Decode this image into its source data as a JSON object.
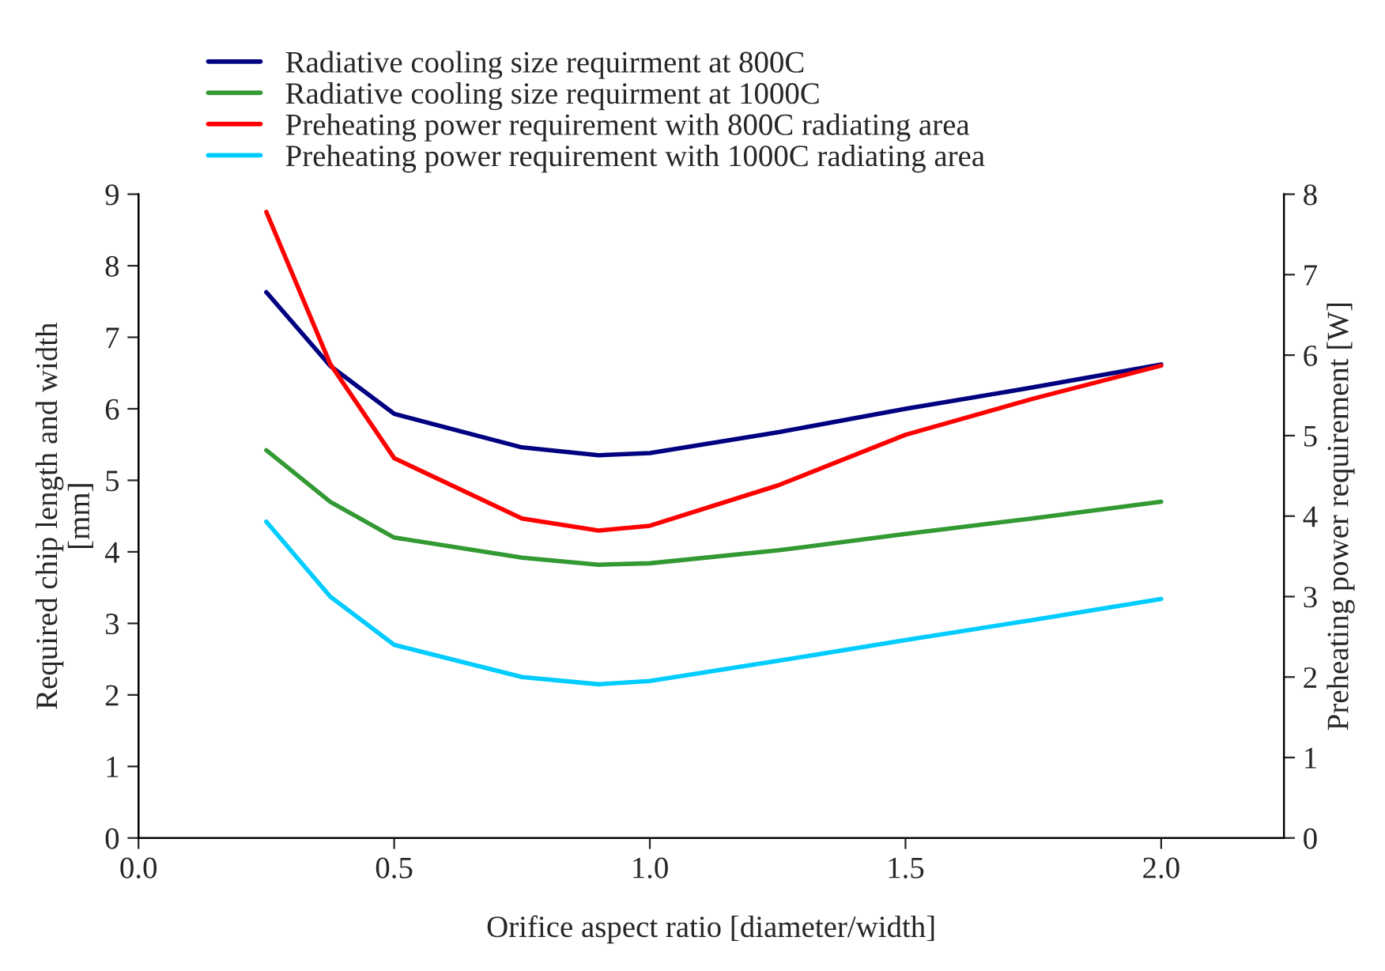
{
  "chart_data": {
    "type": "line",
    "xlabel": "Orifice aspect ratio [diameter/width]",
    "ylabel": "Required chip length and width\n[mm]",
    "y2label": "Preheating power requirement [W]",
    "xlim": [
      0,
      2.24
    ],
    "xticks": [
      {
        "value": 0,
        "label": "0.0"
      },
      {
        "value": 0.5,
        "label": "0.5"
      },
      {
        "value": 1,
        "label": "1.0"
      },
      {
        "value": 1.5,
        "label": "1.5"
      },
      {
        "value": 2,
        "label": "2.0"
      }
    ],
    "ylim": [
      0,
      9
    ],
    "yticks": [
      0,
      1,
      2,
      3,
      4,
      5,
      6,
      7,
      8,
      9
    ],
    "y2lim": [
      0,
      8
    ],
    "y2ticks": [
      0,
      1,
      2,
      3,
      4,
      5,
      6,
      7,
      8
    ],
    "x": [
      0.25,
      0.375,
      0.5,
      0.75,
      0.9,
      1.0,
      1.25,
      1.5,
      1.75,
      2.0
    ],
    "series": [
      {
        "name": "Radiative cooling size requirment at 800C",
        "color": "#000080",
        "values": [
          7.63,
          6.6,
          5.93,
          5.46,
          5.35,
          5.38,
          5.67,
          6.0,
          6.3,
          6.62
        ]
      },
      {
        "name": "Radiative cooling size requirment at 1000C",
        "color": "#339933",
        "values": [
          5.42,
          4.7,
          4.2,
          3.92,
          3.82,
          3.84,
          4.02,
          4.25,
          4.47,
          4.7
        ]
      },
      {
        "name": "Preheating power requirement with 800C radiating area",
        "color": "#ff0000",
        "axis": "y2",
        "values": [
          7.78,
          5.89,
          4.72,
          3.97,
          3.82,
          3.88,
          4.38,
          5.01,
          5.46,
          5.87
        ]
      },
      {
        "name": "Preheating power requirement with 1000C radiating area",
        "color": "#00ccff",
        "axis": "y2",
        "values": [
          3.93,
          3.0,
          2.4,
          2.0,
          1.91,
          1.95,
          2.2,
          2.46,
          2.71,
          2.97
        ]
      }
    ],
    "legend": "top",
    "grid": false,
    "marker": "none",
    "line_style": "solid"
  }
}
